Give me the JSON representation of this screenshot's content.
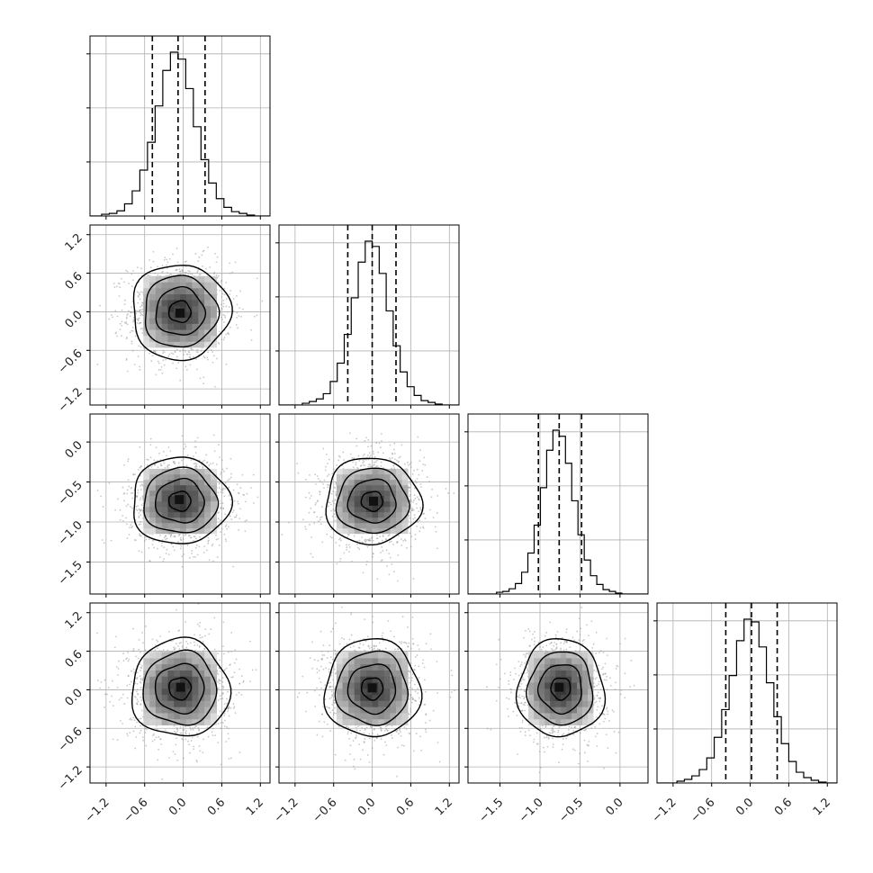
{
  "chart_data": {
    "type": "corner",
    "grid": true,
    "params": [
      {
        "ticks": [
          -1.2,
          -0.6,
          0.0,
          0.6,
          1.2
        ],
        "tick_labels": [
          "−1.2",
          "−0.6",
          "0.0",
          "0.6",
          "1.2"
        ],
        "range": [
          -1.45,
          1.35
        ],
        "quantiles": [
          -0.48,
          -0.08,
          0.34
        ],
        "hist_counts": [
          2,
          3,
          6,
          14,
          29,
          53,
          85,
          127,
          168,
          189,
          181,
          147,
          103,
          65,
          38,
          20,
          10,
          5,
          3,
          1
        ]
      },
      {
        "ticks": [
          -1.2,
          -0.6,
          0.0,
          0.6,
          1.2
        ],
        "tick_labels": [
          "−1.2",
          "−0.6",
          "0.0",
          "0.6",
          "1.2"
        ],
        "range": [
          -1.45,
          1.35
        ],
        "quantiles": [
          -0.38,
          0.0,
          0.37
        ],
        "hist_counts": [
          2,
          4,
          7,
          13,
          27,
          48,
          81,
          123,
          164,
          188,
          182,
          151,
          108,
          68,
          38,
          21,
          11,
          5,
          3,
          1
        ]
      },
      {
        "ticks": [
          -1.5,
          -1.0,
          -0.5,
          0.0
        ],
        "tick_labels": [
          "−1.5",
          "−1.0",
          "−0.5",
          "0.0"
        ],
        "range": [
          -1.9,
          0.35
        ],
        "quantiles": [
          -1.02,
          -0.76,
          -0.48
        ],
        "hist_counts": [
          2,
          3,
          6,
          12,
          25,
          47,
          79,
          122,
          165,
          188,
          181,
          150,
          107,
          68,
          39,
          21,
          11,
          5,
          3,
          1
        ]
      },
      {
        "ticks": [
          -1.2,
          -0.6,
          0.0,
          0.6,
          1.2
        ],
        "tick_labels": [
          "−1.2",
          "−0.6",
          "0.0",
          "0.6",
          "1.2"
        ],
        "range": [
          -1.45,
          1.35
        ],
        "quantiles": [
          -0.38,
          0.02,
          0.42
        ],
        "hist_counts": [
          2,
          4,
          8,
          15,
          28,
          51,
          82,
          120,
          159,
          183,
          180,
          152,
          112,
          74,
          44,
          24,
          12,
          6,
          3,
          1
        ]
      }
    ],
    "pairs": [
      {
        "row": 1,
        "col": 0,
        "mean": [
          -0.05,
          0.0
        ],
        "sigma": [
          0.38,
          0.37
        ],
        "peak": [
          -0.05,
          -0.02
        ]
      },
      {
        "row": 2,
        "col": 0,
        "mean": [
          -0.05,
          -0.74
        ],
        "sigma": [
          0.38,
          0.27
        ],
        "peak": [
          -0.06,
          -0.72
        ]
      },
      {
        "row": 2,
        "col": 1,
        "mean": [
          0.0,
          -0.74
        ],
        "sigma": [
          0.37,
          0.27
        ],
        "peak": [
          0.02,
          -0.74
        ]
      },
      {
        "row": 3,
        "col": 0,
        "mean": [
          -0.05,
          0.02
        ],
        "sigma": [
          0.38,
          0.38
        ],
        "peak": [
          -0.04,
          0.04
        ]
      },
      {
        "row": 3,
        "col": 1,
        "mean": [
          0.0,
          0.02
        ],
        "sigma": [
          0.37,
          0.38
        ],
        "peak": [
          0.0,
          0.03
        ]
      },
      {
        "row": 3,
        "col": 2,
        "mean": [
          -0.74,
          0.02
        ],
        "sigma": [
          0.27,
          0.38
        ],
        "peak": [
          -0.76,
          0.04
        ]
      }
    ]
  }
}
